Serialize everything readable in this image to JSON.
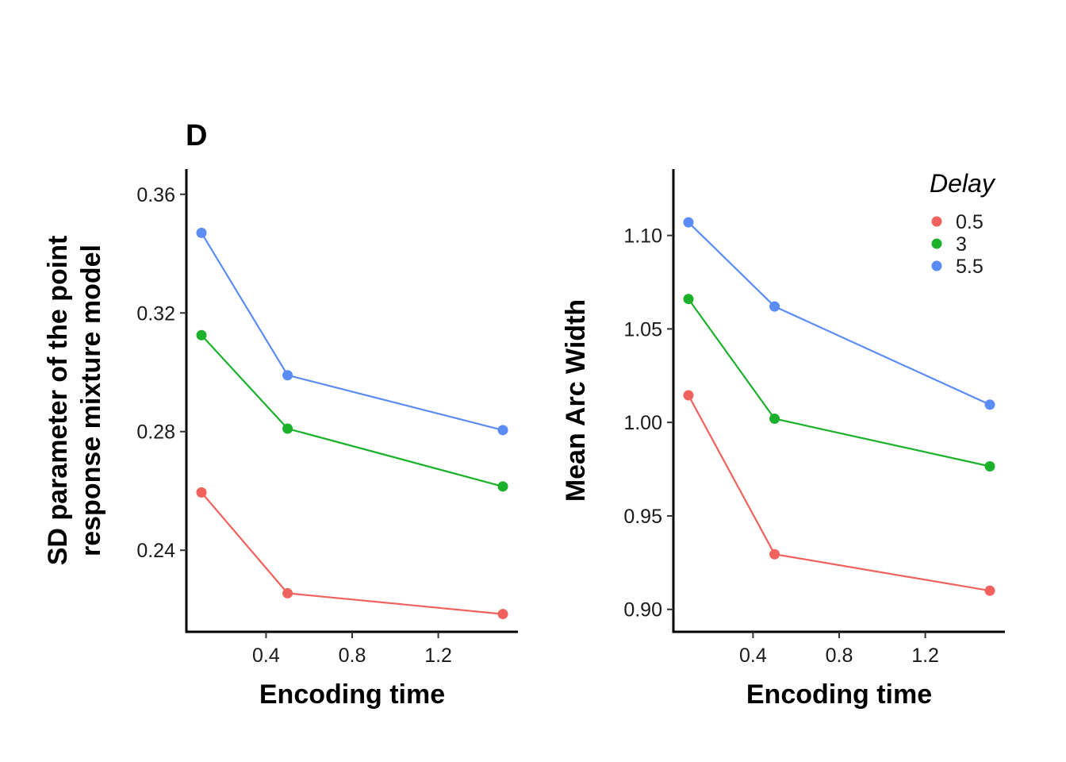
{
  "figure": {
    "panel_tag": "D"
  },
  "legend": {
    "title": "Delay",
    "entries": [
      {
        "label": "0.5",
        "color": "#F0625D"
      },
      {
        "label": "3",
        "color": "#1BB12B"
      },
      {
        "label": "5.5",
        "color": "#5B8CF5"
      }
    ]
  },
  "chart_data": [
    {
      "type": "line",
      "title": "",
      "xlabel": "Encoding time",
      "ylabel_lines": [
        "SD parameter of the point",
        "response mixture model"
      ],
      "x": [
        0.1,
        0.5,
        1.5
      ],
      "xlim": [
        0.03,
        1.57
      ],
      "ylim": [
        0.2125,
        0.3685
      ],
      "xticks": [
        0.4,
        0.8,
        1.2
      ],
      "xtick_labels": [
        "0.4",
        "0.8",
        "1.2"
      ],
      "yticks": [
        0.24,
        0.28,
        0.32,
        0.36
      ],
      "ytick_labels": [
        "0.24",
        "0.28",
        "0.32",
        "0.36"
      ],
      "grid": false,
      "series": [
        {
          "name": "0.5",
          "color": "#F0625D",
          "values": [
            0.2595,
            0.2255,
            0.2185
          ]
        },
        {
          "name": "3",
          "color": "#1BB12B",
          "values": [
            0.3125,
            0.281,
            0.2615
          ]
        },
        {
          "name": "5.5",
          "color": "#5B8CF5",
          "values": [
            0.347,
            0.299,
            0.2805
          ]
        }
      ]
    },
    {
      "type": "line",
      "title": "",
      "xlabel": "Encoding time",
      "ylabel_lines": [
        "Mean Arc Width"
      ],
      "x": [
        0.1,
        0.5,
        1.5
      ],
      "xlim": [
        0.03,
        1.57
      ],
      "ylim": [
        0.888,
        1.1355
      ],
      "xticks": [
        0.4,
        0.8,
        1.2
      ],
      "xtick_labels": [
        "0.4",
        "0.8",
        "1.2"
      ],
      "yticks": [
        0.9,
        0.95,
        1.0,
        1.05,
        1.1
      ],
      "ytick_labels": [
        "0.90",
        "0.95",
        "1.00",
        "1.05",
        "1.10"
      ],
      "grid": false,
      "legend_position": "top-right",
      "series": [
        {
          "name": "0.5",
          "color": "#F0625D",
          "values": [
            1.0145,
            0.9295,
            0.91
          ]
        },
        {
          "name": "3",
          "color": "#1BB12B",
          "values": [
            1.066,
            1.002,
            0.9765
          ]
        },
        {
          "name": "5.5",
          "color": "#5B8CF5",
          "values": [
            1.107,
            1.062,
            1.0095
          ]
        }
      ]
    }
  ]
}
